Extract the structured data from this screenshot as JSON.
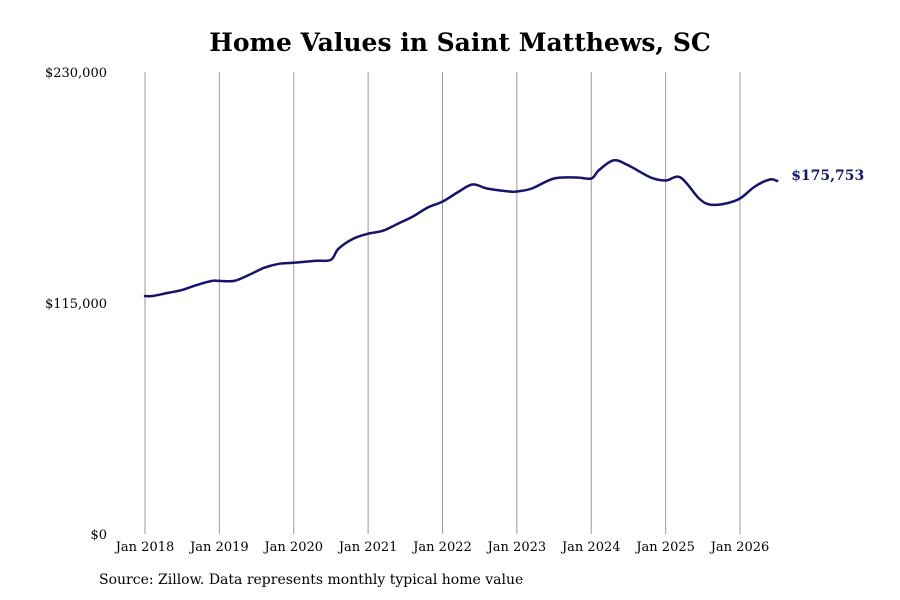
{
  "chart_data": {
    "type": "line",
    "title": "Home Values in Saint Matthews, SC",
    "xlabel": "",
    "ylabel": "",
    "ylim": [
      0,
      230000
    ],
    "yticks": [
      {
        "value": 0,
        "label": "$0"
      },
      {
        "value": 115000,
        "label": "$115,000"
      },
      {
        "value": 230000,
        "label": "$230,000"
      }
    ],
    "xticks": [
      {
        "value": 2018.0,
        "label": "Jan 2018"
      },
      {
        "value": 2019.0,
        "label": "Jan 2019"
      },
      {
        "value": 2020.0,
        "label": "Jan 2020"
      },
      {
        "value": 2021.0,
        "label": "Jan 2021"
      },
      {
        "value": 2022.0,
        "label": "Jan 2022"
      },
      {
        "value": 2023.0,
        "label": "Jan 2023"
      },
      {
        "value": 2024.0,
        "label": "Jan 2024"
      },
      {
        "value": 2025.0,
        "label": "Jan 2025"
      },
      {
        "value": 2026.0,
        "label": "Jan 2026"
      }
    ],
    "grid": "vertical",
    "line_color": "#14146b",
    "end_label": "$175,753",
    "series": [
      {
        "x": [
          2018.0,
          2018.1,
          2018.3,
          2018.5,
          2018.7,
          2018.9,
          2019.0,
          2019.2,
          2019.4,
          2019.6,
          2019.8,
          2020.0,
          2020.3,
          2020.5,
          2020.6,
          2020.8,
          2021.0,
          2021.2,
          2021.4,
          2021.6,
          2021.8,
          2022.0,
          2022.2,
          2022.4,
          2022.6,
          2022.9,
          2023.0,
          2023.2,
          2023.5,
          2023.8,
          2024.0,
          2024.1,
          2024.3,
          2024.5,
          2024.8,
          2025.0,
          2025.2,
          2025.45,
          2025.6,
          2025.8,
          2026.0,
          2026.2,
          2026.4,
          2026.5
        ],
        "y": [
          118500,
          118500,
          120000,
          121500,
          124000,
          126000,
          126000,
          126000,
          129000,
          132500,
          134500,
          135000,
          136000,
          136500,
          142000,
          147000,
          149500,
          151000,
          154500,
          158000,
          162500,
          165500,
          170000,
          174000,
          172000,
          170500,
          170500,
          172000,
          177000,
          177500,
          177000,
          181000,
          186000,
          183500,
          177500,
          176000,
          177500,
          167000,
          164000,
          164500,
          167000,
          173000,
          176500,
          175753
        ]
      }
    ]
  },
  "source": "Source: Zillow. Data represents monthly typical home value"
}
